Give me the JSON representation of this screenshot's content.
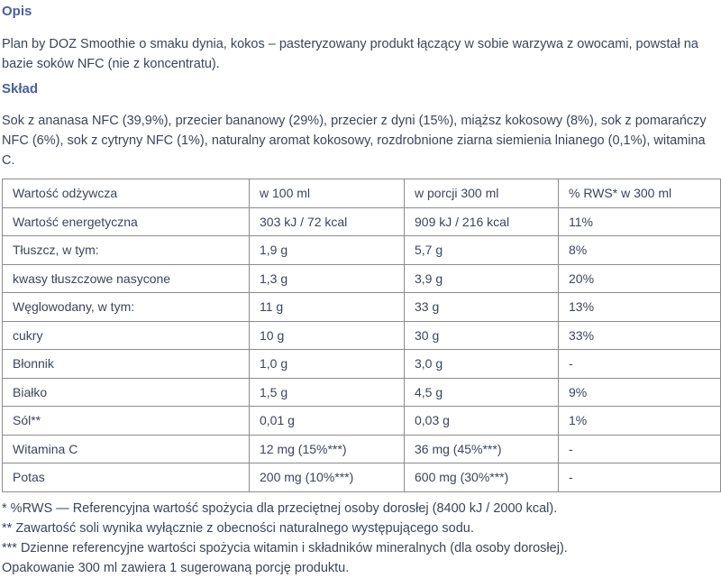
{
  "opis": {
    "heading": "Opis",
    "text": "Plan by DOZ Smoothie o smaku dynia, kokos – pasteryzowany produkt łączący w sobie warzywa z owocami, powstał na bazie soków NFC (nie z koncentratu)."
  },
  "sklad": {
    "heading": "Skład",
    "text": "Sok z ananasa NFC (39,9%), przecier bananowy (29%), przecier z dyni (15%), miąższ kokosowy (8%), sok z pomarańczy NFC (6%), sok z cytryny NFC (1%), naturalny aromat kokosowy, rozdrobnione ziarna siemienia lnianego (0,1%), witamina C."
  },
  "nutrition_table": {
    "headers": [
      "Wartość odżywcza",
      "w 100 ml",
      "w porcji 300 ml",
      "% RWS* w 300 ml"
    ],
    "rows": [
      [
        "Wartość energetyczna",
        "303 kJ / 72 kcal",
        "909 kJ / 216 kcal",
        "11%"
      ],
      [
        "Tłuszcz, w tym:",
        "1,9 g",
        "5,7 g",
        "8%"
      ],
      [
        "kwasy tłuszczowe nasycone",
        "1,3 g",
        "3,9 g",
        "20%"
      ],
      [
        "Węglowodany, w tym:",
        "11 g",
        "33 g",
        "13%"
      ],
      [
        "cukry",
        "10 g",
        "30 g",
        "33%"
      ],
      [
        "Błonnik",
        "1,0 g",
        "3,0 g",
        "-"
      ],
      [
        "Białko",
        "1,5 g",
        "4,5 g",
        "9%"
      ],
      [
        "Sól**",
        "0,01 g",
        "0,03 g",
        "1%"
      ],
      [
        "Witamina C",
        "12 mg (15%***)",
        "36 mg (45%***)",
        "-"
      ],
      [
        "Potas",
        "200 mg (10%***)",
        "600 mg (30%***)",
        "-"
      ]
    ]
  },
  "footnotes": [
    "* %RWS — Referencyjna wartość spożycia dla przeciętnej osoby dorosłej (8400 kJ / 2000 kcal).",
    "** Zawartość soli wynika wyłącznie z obecności naturalnego występującego sodu.",
    "*** Dzienne referencyjne wartości spożycia witamin i składników mineralnych (dla osoby dorosłej).",
    "Opakowanie 300 ml zawiera 1 sugerowaną porcję produktu."
  ],
  "colors": {
    "heading": "#4a5f9e",
    "text": "#3b4559",
    "table_border": "#8c8c8c",
    "background": "#ffffff"
  }
}
